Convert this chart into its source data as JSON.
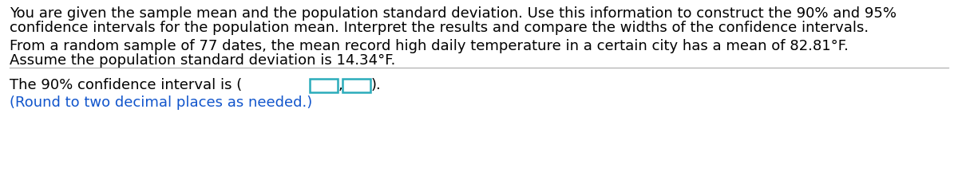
{
  "line1": "You are given the sample mean and the population standard deviation. Use this information to construct the 90% and 95%",
  "line2": "confidence intervals for the population mean. Interpret the results and compare the widths of the confidence intervals.",
  "line3": "From a random sample of 77 dates, the mean record high daily temperature in a certain city has a mean of 82.81°F.",
  "line4": "Assume the population standard deviation is 14.34°F.",
  "line5_prefix": "The 90% confidence interval is (",
  "line5_suffix": ").",
  "line6": "(Round to two decimal places as needed.)",
  "text_color_black": "#000000",
  "text_color_blue": "#1155cc",
  "box_color": "#2aacbb",
  "bg_color": "#ffffff",
  "font_size": 13.0
}
